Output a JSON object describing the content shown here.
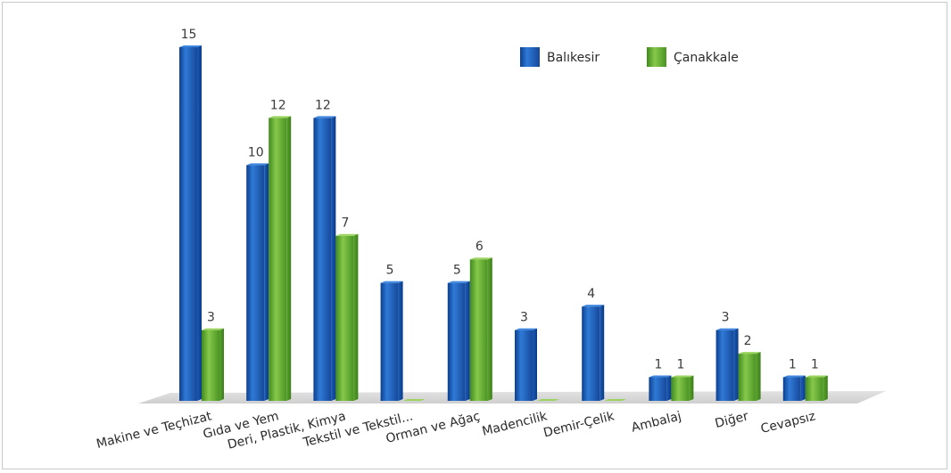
{
  "chart_data": {
    "type": "bar",
    "categories": [
      "Makine ve Teçhizat",
      "Gıda ve Yem",
      "Deri, Plastik, Kimya",
      "Tekstil ve Tekstil...",
      "Orman ve Ağaç",
      "Madencilik",
      "Demir-Çelik",
      "Ambalaj",
      "Diğer",
      "Cevapsız"
    ],
    "series": [
      {
        "name": "Balıkesir",
        "values": [
          15,
          10,
          12,
          5,
          5,
          3,
          4,
          1,
          3,
          1
        ],
        "labels": [
          "15",
          "10",
          "12",
          "5",
          "5",
          "3",
          "4",
          "1",
          "3",
          "1"
        ],
        "color": "#1f5fb5"
      },
      {
        "name": "Çanakkale",
        "values": [
          3,
          12,
          7,
          0,
          6,
          0,
          0,
          1,
          2,
          1
        ],
        "labels": [
          "3",
          "12",
          "7",
          "",
          "6",
          "",
          "",
          "1",
          "2",
          "1"
        ],
        "color": "#5ea42d"
      }
    ],
    "ylim": [
      0,
      15
    ],
    "grid": false,
    "legend": "top-right",
    "style": "3d-cylinder-bars"
  }
}
